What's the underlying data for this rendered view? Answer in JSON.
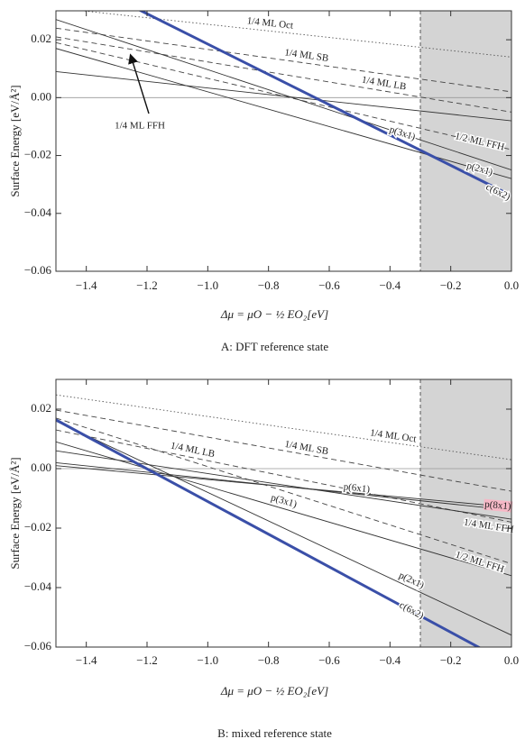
{
  "chart_data": [
    {
      "type": "line",
      "caption": "A:  DFT reference state",
      "x_label": "Δμ = μO − ½ EO₂[eV]",
      "y_label": "Surface Energy [eV/Å²]",
      "x": [
        -1.5,
        0
      ],
      "xlim": [
        -1.5,
        0
      ],
      "ylim": [
        -0.06,
        0.03
      ],
      "xticks": [
        {
          "value": -1.4,
          "label": "−1.4"
        },
        {
          "value": -1.2,
          "label": "−1.2"
        },
        {
          "value": -1.0,
          "label": "−1.0"
        },
        {
          "value": -0.8,
          "label": "−0.8"
        },
        {
          "value": -0.6,
          "label": "−0.6"
        },
        {
          "value": -0.4,
          "label": "−0.4"
        },
        {
          "value": -0.2,
          "label": "−0.2"
        },
        {
          "value": 0,
          "label": "0.0"
        }
      ],
      "yticks": [
        {
          "value": -0.06,
          "label": "−0.06"
        },
        {
          "value": -0.04,
          "label": "−0.04"
        },
        {
          "value": -0.02,
          "label": "−0.02"
        },
        {
          "value": 0,
          "label": "0.00"
        },
        {
          "value": 0.02,
          "label": "0.02"
        }
      ],
      "zero_line": true,
      "shade_xlim": [
        -0.3,
        0
      ],
      "series": [
        {
          "name": "1/4 ML Oct",
          "color": "#555555",
          "dash": "dotted",
          "values": [
            0.031,
            0.014
          ]
        },
        {
          "name": "1/4 ML SB",
          "color": "#444444",
          "dash": "dashed",
          "values": [
            0.024,
            0.002
          ]
        },
        {
          "name": "1/4 ML LB",
          "color": "#444444",
          "dash": "dashed",
          "values": [
            0.021,
            -0.005
          ]
        },
        {
          "name": "1/4 ML FFH",
          "color": "#333333",
          "dash": "solid",
          "values": [
            0.009,
            -0.008
          ]
        },
        {
          "name": "p(3x1)",
          "color": "#333333",
          "dash": "solid",
          "values": [
            0.027,
            -0.025
          ]
        },
        {
          "name": "1/2 ML FFH",
          "color": "#444444",
          "dash": "dashed",
          "values": [
            0.019,
            -0.018
          ]
        },
        {
          "name": "p(2x1)",
          "color": "#333333",
          "dash": "solid",
          "values": [
            0.017,
            -0.028
          ]
        },
        {
          "name": "c(6x2)",
          "color": "#3a4fa8",
          "dash": "thick",
          "values": [
            0.0447,
            -0.0339
          ]
        }
      ]
    },
    {
      "type": "line",
      "caption": "B:  mixed reference state",
      "x_label": "Δμ = μO − ½ EO₂[eV]",
      "y_label": "Surface Energy [eV/Å²]",
      "x": [
        -1.5,
        0
      ],
      "xlim": [
        -1.5,
        0
      ],
      "ylim": [
        -0.06,
        0.03
      ],
      "xticks": [
        {
          "value": -1.4,
          "label": "−1.4"
        },
        {
          "value": -1.2,
          "label": "−1.2"
        },
        {
          "value": -1.0,
          "label": "−1.0"
        },
        {
          "value": -0.8,
          "label": "−0.8"
        },
        {
          "value": -0.6,
          "label": "−0.6"
        },
        {
          "value": -0.4,
          "label": "−0.4"
        },
        {
          "value": -0.2,
          "label": "−0.2"
        },
        {
          "value": 0,
          "label": "0.0"
        }
      ],
      "yticks": [
        {
          "value": -0.06,
          "label": "−0.06"
        },
        {
          "value": -0.04,
          "label": "−0.04"
        },
        {
          "value": -0.02,
          "label": "−0.02"
        },
        {
          "value": 0,
          "label": "0.00"
        },
        {
          "value": 0.02,
          "label": "0.02"
        }
      ],
      "zero_line": true,
      "shade_xlim": [
        -0.3,
        0
      ],
      "series": [
        {
          "name": "1/4 ML Oct",
          "color": "#555555",
          "dash": "dotted",
          "values": [
            0.0248,
            0.003
          ]
        },
        {
          "name": "1/4 ML SB",
          "color": "#444444",
          "dash": "dashed",
          "values": [
            0.0197,
            -0.0076
          ]
        },
        {
          "name": "1/4 ML LB",
          "color": "#444444",
          "dash": "dashed",
          "values": [
            0.013,
            -0.018
          ]
        },
        {
          "name": "p(6x1)",
          "color": "#333333",
          "dash": "solid",
          "values": [
            0.002,
            -0.014
          ]
        },
        {
          "name": "p(8x1)",
          "color": "#333333",
          "dash": "solid",
          "values": [
            0.001,
            -0.013
          ],
          "label_color": "#c0203a",
          "label_background": "#f6b8c6"
        },
        {
          "name": "1/4 ML FFH",
          "color": "#333333",
          "dash": "solid",
          "values": [
            0.006,
            -0.017
          ]
        },
        {
          "name": "p(3x1)",
          "color": "#333333",
          "dash": "solid",
          "values": [
            0.009,
            -0.036
          ]
        },
        {
          "name": "1/2 ML FFH",
          "color": "#444444",
          "dash": "dashed",
          "values": [
            0.017,
            -0.032
          ]
        },
        {
          "name": "p(2x1)",
          "color": "#333333",
          "dash": "solid",
          "values": [
            0.016,
            -0.056
          ]
        },
        {
          "name": "c(6x2)",
          "color": "#3a4fa8",
          "dash": "thick",
          "values": [
            0.0164,
            -0.066
          ]
        }
      ]
    }
  ]
}
